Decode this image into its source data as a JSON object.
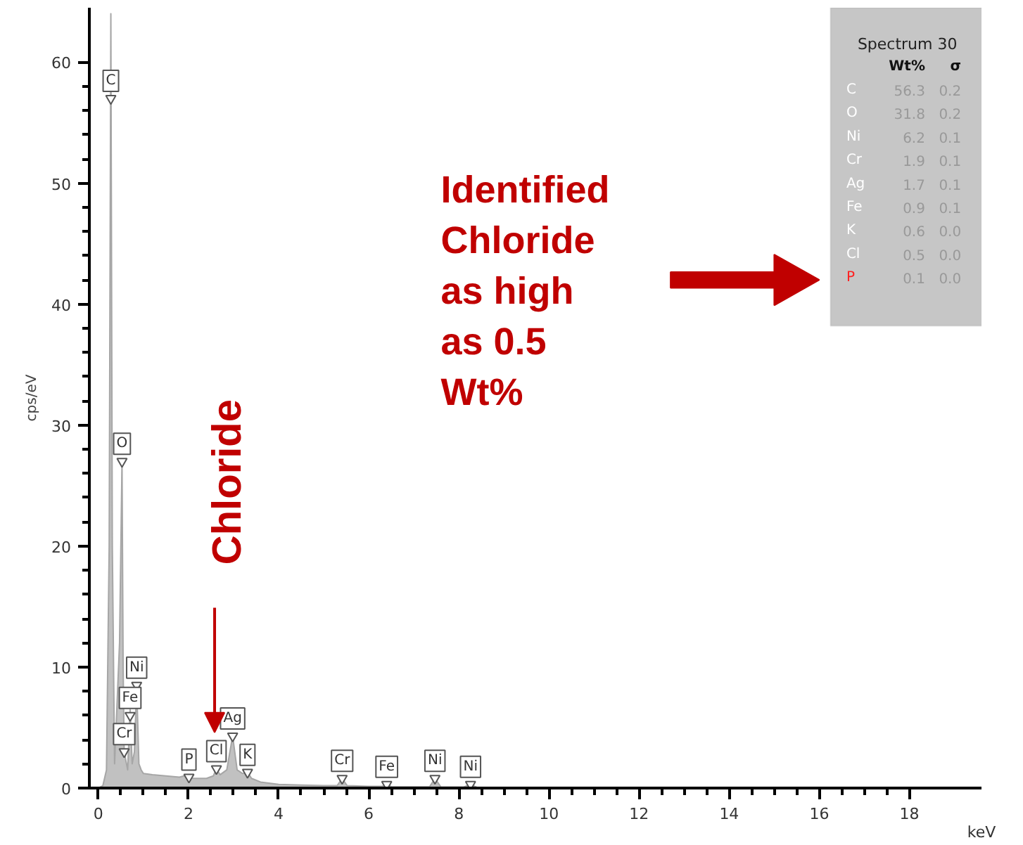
{
  "chart_data": [
    {
      "type": "area",
      "xlabel": "keV",
      "ylabel": "cps/eV",
      "xlim": [
        -0.2,
        19.6
      ],
      "ylim": [
        0,
        64.5
      ],
      "xticks": [
        0,
        2,
        4,
        6,
        8,
        10,
        12,
        14,
        16,
        18
      ],
      "yticks": [
        0,
        10,
        20,
        30,
        40,
        50,
        60
      ],
      "grid": false,
      "legend": false,
      "x": [
        0,
        0.1,
        0.18,
        0.24,
        0.277,
        0.31,
        0.36,
        0.47,
        0.525,
        0.55,
        0.573,
        0.65,
        0.705,
        0.75,
        0.8,
        0.85,
        0.9,
        0.95,
        1.0,
        1.2,
        1.5,
        1.8,
        2.0,
        2.1,
        2.4,
        2.55,
        2.62,
        2.7,
        2.85,
        2.98,
        3.08,
        3.2,
        3.31,
        3.4,
        3.6,
        4.0,
        4.5,
        5.0,
        5.3,
        5.41,
        5.52,
        6.0,
        6.3,
        6.4,
        6.5,
        7.0,
        7.35,
        7.47,
        7.6,
        8.1,
        8.26,
        8.4,
        9.0,
        10,
        12,
        14,
        16,
        18,
        19.6
      ],
      "series": [
        {
          "color": "#a6a6a6",
          "values": [
            0,
            0.2,
            1.5,
            20,
            64,
            20,
            2,
            12,
            27,
            10,
            3,
            1.5,
            6.5,
            2,
            3,
            8.5,
            2,
            1.5,
            1.2,
            1.1,
            1,
            0.9,
            1.1,
            0.8,
            0.8,
            1,
            1.6,
            1.1,
            1.5,
            4.3,
            1.5,
            1.2,
            1.3,
            0.8,
            0.5,
            0.3,
            0.25,
            0.2,
            0.2,
            0.8,
            0.2,
            0.15,
            0.15,
            0.3,
            0.12,
            0.1,
            0.1,
            0.8,
            0.1,
            0.08,
            0.3,
            0.06,
            0.05,
            0.03,
            0.02,
            0.02,
            0.01,
            0.01,
            0
          ]
        }
      ],
      "annotations": [
        {
          "text": "C",
          "x": 0.277,
          "y": 57
        },
        {
          "text": "O",
          "x": 0.525,
          "y": 27
        },
        {
          "text": "Cr",
          "x": 0.573,
          "y": 3
        },
        {
          "text": "Fe",
          "x": 0.705,
          "y": 6
        },
        {
          "text": "Ni",
          "x": 0.85,
          "y": 8.5
        },
        {
          "text": "P",
          "x": 2.01,
          "y": 0.9
        },
        {
          "text": "Cl",
          "x": 2.62,
          "y": 1.6
        },
        {
          "text": "Ag",
          "x": 2.98,
          "y": 4.3
        },
        {
          "text": "K",
          "x": 3.31,
          "y": 1.3
        },
        {
          "text": "Cr",
          "x": 5.41,
          "y": 0.8
        },
        {
          "text": "Fe",
          "x": 6.4,
          "y": 0.3
        },
        {
          "text": "Ni",
          "x": 7.47,
          "y": 0.8
        },
        {
          "text": "Ni",
          "x": 8.26,
          "y": 0.3
        },
        "Chloride",
        "Identified\nChloride\nas high\nas 0.5\nWt%"
      ]
    },
    {
      "type": "other",
      "title": "Spectrum 30",
      "categories": [
        "C",
        "O",
        "Ni",
        "Cr",
        "Ag",
        "Fe",
        "K",
        "Cl",
        "P"
      ],
      "colors": [
        "#ffffff",
        "#ffffff",
        "#ffffff",
        "#ffffff",
        "#ffffff",
        "#ffffff",
        "#ffffff",
        "#ffffff",
        "#ff2020"
      ],
      "series": [
        {
          "name": "Wt%",
          "values": [
            56.3,
            31.8,
            6.2,
            1.9,
            1.7,
            0.9,
            0.6,
            0.5,
            0.1
          ]
        },
        {
          "name": "σ",
          "values": [
            0.2,
            0.2,
            0.1,
            0.1,
            0.1,
            0.1,
            0.0,
            0.0,
            0.0
          ],
          "value_labels": [
            "0.2",
            "0.2",
            "0.1",
            "0.1",
            "0.1",
            "0.1",
            "0.0",
            "0.0",
            "0.0"
          ]
        }
      ],
      "data_labels": true
    }
  ]
}
